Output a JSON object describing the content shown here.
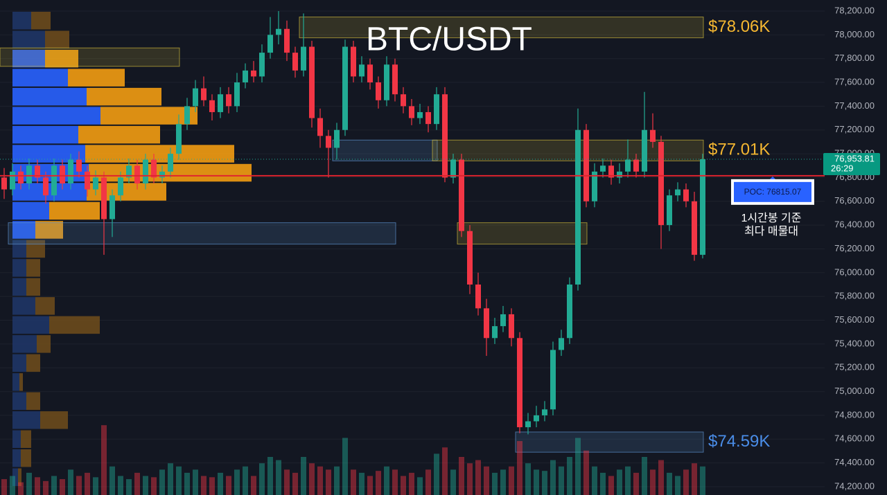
{
  "chart_data": {
    "type": "candlestick",
    "title": "BTC/USDT",
    "ylim": [
      74130,
      78293
    ],
    "yticks": [
      {
        "value": 74200,
        "label": "74,200.00"
      },
      {
        "value": 74400,
        "label": "74,400.00"
      },
      {
        "value": 74600,
        "label": "74,600.00"
      },
      {
        "value": 74800,
        "label": "74,800.00"
      },
      {
        "value": 75000,
        "label": "75,000.00"
      },
      {
        "value": 75200,
        "label": "75,200.00"
      },
      {
        "value": 75400,
        "label": "75,400.00"
      },
      {
        "value": 75600,
        "label": "75,600.00"
      },
      {
        "value": 75800,
        "label": "75,800.00"
      },
      {
        "value": 76000,
        "label": "76,000.00"
      },
      {
        "value": 76200,
        "label": "76,200.00"
      },
      {
        "value": 76400,
        "label": "76,400.00"
      },
      {
        "value": 76600,
        "label": "76,600.00"
      },
      {
        "value": 76800,
        "label": "76,800.00"
      },
      {
        "value": 77000,
        "label": "77,000.00"
      },
      {
        "value": 77200,
        "label": "77,200.00"
      },
      {
        "value": 77400,
        "label": "77,400.00"
      },
      {
        "value": 77600,
        "label": "77,600.00"
      },
      {
        "value": 77800,
        "label": "77,800.00"
      },
      {
        "value": 78000,
        "label": "78,000.00"
      },
      {
        "value": 78200,
        "label": "78,200.00"
      }
    ],
    "up_color": "#22ab94",
    "down_color": "#f23645",
    "candles": [
      [
        76800,
        76880,
        76620,
        76700
      ],
      [
        76700,
        76920,
        76650,
        76850
      ],
      [
        76850,
        76900,
        76700,
        76750
      ],
      [
        76750,
        76960,
        76700,
        76900
      ],
      [
        76900,
        76950,
        76750,
        76800
      ],
      [
        76800,
        76850,
        76580,
        76650
      ],
      [
        76650,
        76960,
        76600,
        76900
      ],
      [
        76900,
        76950,
        76700,
        76750
      ],
      [
        76750,
        77000,
        76700,
        76950
      ],
      [
        76950,
        77020,
        76800,
        76850
      ],
      [
        76850,
        76900,
        76640,
        76700
      ],
      [
        76700,
        76860,
        76650,
        76800
      ],
      [
        76800,
        76850,
        76150,
        76450
      ],
      [
        76450,
        76700,
        76300,
        76650
      ],
      [
        76650,
        76850,
        76600,
        76800
      ],
      [
        76800,
        76960,
        76750,
        76900
      ],
      [
        76900,
        76950,
        76700,
        76750
      ],
      [
        76750,
        77000,
        76700,
        76950
      ],
      [
        76950,
        77000,
        76750,
        76800
      ],
      [
        76800,
        76900,
        76750,
        76850
      ],
      [
        76850,
        77050,
        76800,
        77000
      ],
      [
        77000,
        77330,
        76950,
        77250
      ],
      [
        77250,
        77470,
        77200,
        77400
      ],
      [
        77400,
        77620,
        77350,
        77550
      ],
      [
        77550,
        77650,
        77400,
        77450
      ],
      [
        77450,
        77500,
        77280,
        77350
      ],
      [
        77350,
        77560,
        77300,
        77500
      ],
      [
        77500,
        77560,
        77340,
        77400
      ],
      [
        77400,
        77680,
        77350,
        77600
      ],
      [
        77600,
        77760,
        77550,
        77700
      ],
      [
        77700,
        77780,
        77600,
        77650
      ],
      [
        77650,
        77920,
        77600,
        77850
      ],
      [
        77850,
        78150,
        77800,
        78000
      ],
      [
        78000,
        78200,
        77920,
        78050
      ],
      [
        78050,
        78120,
        77780,
        77850
      ],
      [
        77850,
        77900,
        77640,
        77700
      ],
      [
        77700,
        78180,
        77650,
        77900
      ],
      [
        77900,
        77950,
        77220,
        77300
      ],
      [
        77300,
        77380,
        77050,
        77150
      ],
      [
        77150,
        77200,
        76800,
        77050
      ],
      [
        77050,
        77260,
        76950,
        77200
      ],
      [
        77200,
        77960,
        77150,
        77900
      ],
      [
        77900,
        77950,
        77600,
        77650
      ],
      [
        77650,
        77820,
        77600,
        77750
      ],
      [
        77750,
        77800,
        77540,
        77600
      ],
      [
        77600,
        77650,
        77380,
        77450
      ],
      [
        77450,
        77820,
        77400,
        77750
      ],
      [
        77750,
        77800,
        77440,
        77500
      ],
      [
        77500,
        77560,
        77340,
        77400
      ],
      [
        77400,
        77460,
        77240,
        77300
      ],
      [
        77300,
        77420,
        77250,
        77350
      ],
      [
        77350,
        77400,
        77180,
        77250
      ],
      [
        77250,
        77560,
        77200,
        77500
      ],
      [
        77500,
        77560,
        76760,
        76800
      ],
      [
        76800,
        77000,
        76750,
        76950
      ],
      [
        76950,
        77000,
        76300,
        76350
      ],
      [
        76350,
        76400,
        75820,
        75900
      ],
      [
        75900,
        76000,
        75640,
        75700
      ],
      [
        75700,
        75780,
        75300,
        75450
      ],
      [
        75450,
        75620,
        75400,
        75550
      ],
      [
        75550,
        75720,
        75500,
        75650
      ],
      [
        75650,
        75700,
        75380,
        75450
      ],
      [
        75450,
        75500,
        74650,
        74700
      ],
      [
        74700,
        74820,
        74640,
        74750
      ],
      [
        74750,
        74880,
        74700,
        74800
      ],
      [
        74800,
        74920,
        74750,
        74850
      ],
      [
        74850,
        75420,
        74800,
        75350
      ],
      [
        75350,
        75520,
        75300,
        75450
      ],
      [
        75450,
        75960,
        75400,
        75900
      ],
      [
        75900,
        77380,
        75850,
        77200
      ],
      [
        77200,
        77250,
        76550,
        76600
      ],
      [
        76600,
        76920,
        76550,
        76850
      ],
      [
        76850,
        76960,
        76800,
        76900
      ],
      [
        76900,
        76950,
        76740,
        76800
      ],
      [
        76800,
        76920,
        76750,
        76850
      ],
      [
        76850,
        77120,
        76800,
        76950
      ],
      [
        76950,
        77000,
        76800,
        76850
      ],
      [
        76850,
        77520,
        76800,
        77200
      ],
      [
        77200,
        77340,
        77050,
        77100
      ],
      [
        77100,
        77150,
        76200,
        76400
      ],
      [
        76400,
        76700,
        76350,
        76650
      ],
      [
        76650,
        76760,
        76600,
        76700
      ],
      [
        76700,
        76750,
        76550,
        76600
      ],
      [
        76600,
        76680,
        76100,
        76150
      ],
      [
        76150,
        77000,
        76120,
        76953.81
      ]
    ],
    "volumes": [
      25,
      30,
      20,
      35,
      28,
      22,
      30,
      25,
      40,
      30,
      35,
      28,
      110,
      45,
      30,
      25,
      35,
      30,
      28,
      40,
      50,
      45,
      35,
      40,
      30,
      28,
      35,
      30,
      40,
      45,
      30,
      50,
      60,
      55,
      40,
      35,
      60,
      50,
      45,
      40,
      45,
      90,
      40,
      35,
      30,
      38,
      45,
      40,
      30,
      35,
      28,
      40,
      65,
      75,
      40,
      60,
      50,
      55,
      45,
      35,
      40,
      45,
      85,
      50,
      40,
      38,
      55,
      45,
      60,
      90,
      70,
      45,
      35,
      30,
      40,
      45,
      35,
      60,
      40,
      55,
      35,
      30,
      40,
      50,
      45
    ],
    "volume_lim": [
      0,
      120
    ],
    "volume_profile": {
      "price_bins": [
        78200,
        78040,
        77880,
        77720,
        77560,
        77400,
        77240,
        77080,
        76920,
        76760,
        76600,
        76440,
        76280,
        76120,
        75960,
        75800,
        75640,
        75480,
        75320,
        75160,
        75000,
        74840,
        74680,
        74520,
        74360,
        74200
      ],
      "buy": [
        27,
        47,
        47,
        80,
        107,
        127,
        95,
        105,
        110,
        107,
        53,
        33,
        20,
        20,
        20,
        33,
        53,
        35,
        20,
        10,
        20,
        40,
        12,
        12,
        8
      ],
      "sell": [
        28,
        35,
        48,
        82,
        108,
        140,
        118,
        215,
        235,
        115,
        73,
        40,
        27,
        20,
        20,
        28,
        73,
        20,
        20,
        5,
        20,
        40,
        15,
        15,
        5
      ],
      "value_area": [
        76280,
        77880
      ],
      "buy_color": "#2962ff",
      "sell_color": "#f39c12",
      "outside_buy_color": "#1f3566",
      "outside_sell_color": "#6b4a1c"
    },
    "zones": [
      {
        "start": 36,
        "end": 84,
        "low": 77975,
        "high": 78150,
        "color": "#c9b43a",
        "label": "$78.06K",
        "label_color": "#f5b731"
      },
      {
        "start": 0,
        "end": 21,
        "low": 77735,
        "high": 77890,
        "color": "#c9b43a"
      },
      {
        "start": 40,
        "end": 52,
        "low": 76940,
        "high": 77115,
        "color": "#5b8fc9"
      },
      {
        "start": 52,
        "end": 84,
        "low": 76940,
        "high": 77115,
        "color": "#c9b43a",
        "label": "$77.01K",
        "label_color": "#f5b731"
      },
      {
        "start": 1,
        "end": 47,
        "low": 76240,
        "high": 76420,
        "color": "#5b8fc9"
      },
      {
        "start": 55,
        "end": 70,
        "low": 76240,
        "high": 76420,
        "color": "#c9b43a"
      },
      {
        "start": 62,
        "end": 84,
        "low": 74490,
        "high": 74660,
        "color": "#5b8fc9",
        "label": "$74.59K",
        "label_color": "#4a8de8"
      }
    ],
    "poc": {
      "value": 76815.07,
      "label": "POC: 76815.07"
    },
    "last_price": {
      "value": 76953.81,
      "label": "76,953.81",
      "countdown": "26:29"
    },
    "annotation": [
      "1시간봉 기준",
      "최다 매물대"
    ]
  }
}
